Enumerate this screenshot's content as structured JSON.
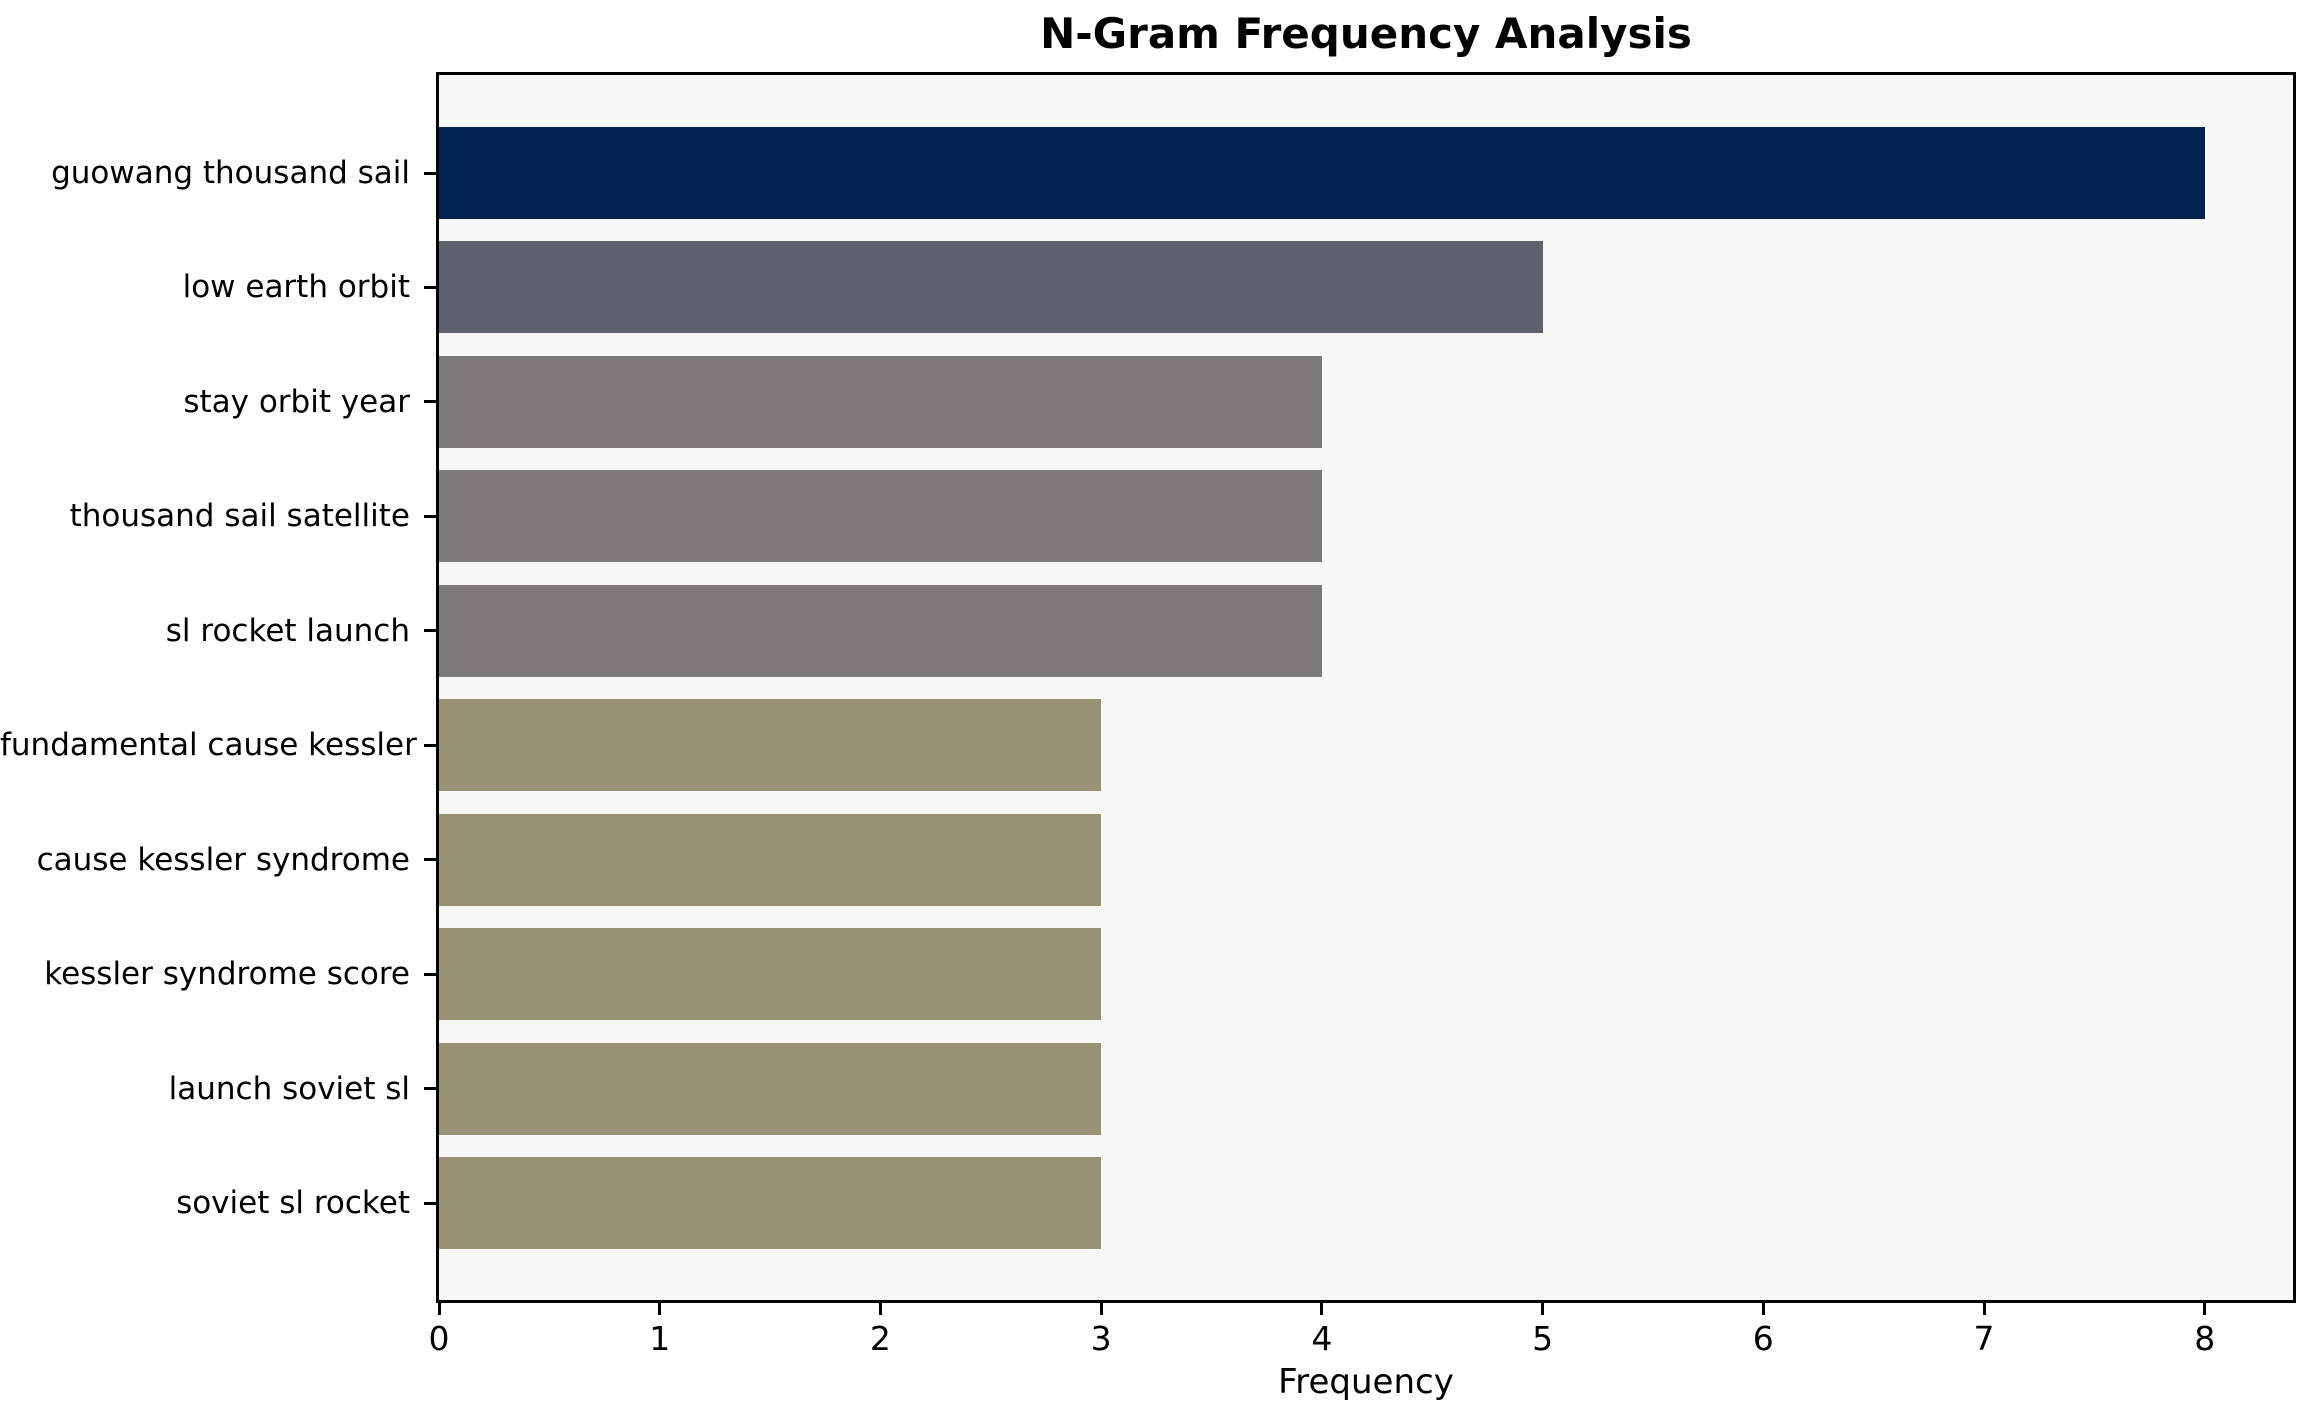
{
  "chart_data": {
    "type": "bar",
    "orientation": "horizontal",
    "title": "N-Gram Frequency Analysis",
    "xlabel": "Frequency",
    "ylabel": "",
    "categories": [
      "guowang thousand sail",
      "low earth orbit",
      "stay orbit year",
      "thousand sail satellite",
      "sl rocket launch",
      "fundamental cause kessler",
      "cause kessler syndrome",
      "kessler syndrome score",
      "launch soviet sl",
      "soviet sl rocket"
    ],
    "values": [
      8,
      5,
      4,
      4,
      4,
      3,
      3,
      3,
      3,
      3
    ],
    "bar_colors": [
      "#00244f",
      "#5d626e",
      "#7b7a76",
      "#7b7a76",
      "#7b7a76",
      "#999274",
      "#999274",
      "#999274",
      "#999274",
      "#999274"
    ],
    "xlim": [
      0,
      8.4
    ],
    "xticks": [
      0,
      1,
      2,
      3,
      4,
      5,
      6,
      7,
      8
    ],
    "grid": false,
    "legend": "none",
    "colors": {
      "figure_bg": "#ffffff",
      "plot_bg": "#f7f7f6",
      "spine": "#000000",
      "text": "#000000"
    }
  }
}
